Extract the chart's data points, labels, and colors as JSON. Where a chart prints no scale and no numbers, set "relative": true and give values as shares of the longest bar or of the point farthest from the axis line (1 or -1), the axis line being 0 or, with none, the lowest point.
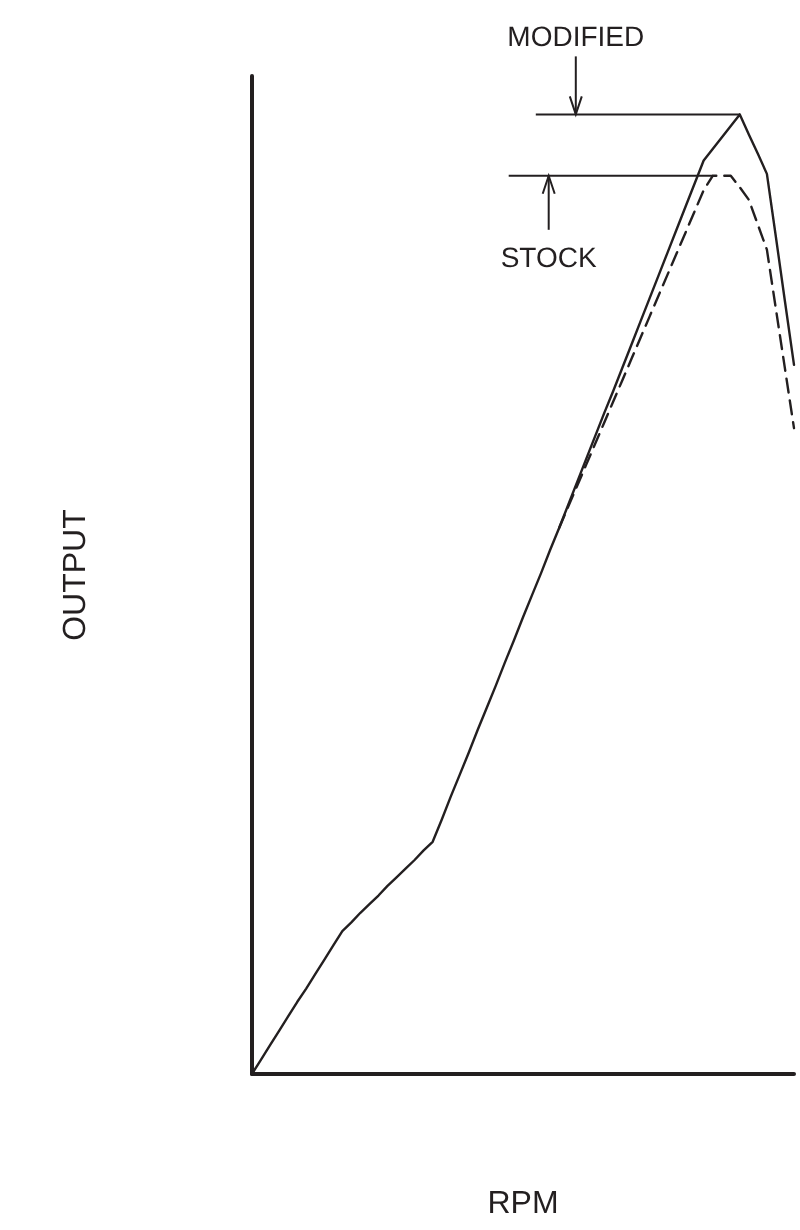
{
  "chart_data": {
    "type": "line",
    "relative": true,
    "xlabel": "RPM",
    "ylabel": "OUTPUT",
    "marker": "none",
    "grid": false,
    "categories": [
      null,
      null,
      null,
      null,
      null,
      null,
      null,
      null,
      null,
      null,
      null,
      null,
      null,
      null,
      null,
      null,
      null,
      null,
      null,
      null,
      null,
      null,
      null,
      null,
      null,
      null,
      null,
      null,
      null,
      null,
      null,
      null,
      null,
      null,
      null,
      null,
      null,
      null,
      null,
      null,
      null,
      null,
      null,
      null,
      null,
      null,
      null,
      null,
      null,
      null,
      null,
      null,
      null,
      null,
      null,
      null,
      null,
      null,
      null,
      null,
      null
    ],
    "series": [
      {
        "color": "#231f20",
        "line_style": "solid",
        "values": [
          0,
          0.015,
          0.03,
          0.045,
          0.06,
          0.075,
          0.089,
          0.104,
          0.119,
          0.134,
          0.149,
          0.158,
          0.168,
          0.177,
          0.186,
          0.196,
          0.205,
          0.214,
          0.223,
          0.233,
          0.242,
          0.265,
          0.289,
          0.312,
          0.335,
          0.359,
          0.382,
          0.405,
          0.429,
          0.452,
          0.476,
          0.499,
          0.522,
          0.546,
          0.569,
          0.593,
          0.617,
          0.641,
          0.665,
          0.689,
          0.712,
          0.736,
          0.76,
          0.784,
          0.808,
          0.832,
          0.856,
          0.88,
          0.904,
          0.928,
          0.952,
          0.964,
          0.976,
          0.988,
          1,
          0.979,
          0.959,
          0.938,
          0.872,
          0.805,
          0.739
        ]
      },
      {
        "color": "#231f20",
        "line_style": "dashed",
        "values": [
          null,
          null,
          null,
          null,
          null,
          null,
          null,
          null,
          null,
          null,
          null,
          null,
          null,
          null,
          null,
          null,
          null,
          null,
          null,
          null,
          null,
          null,
          null,
          null,
          null,
          null,
          null,
          null,
          null,
          null,
          null,
          null,
          null,
          null,
          0.569,
          0.591,
          0.613,
          0.635,
          0.657,
          0.679,
          0.701,
          0.723,
          0.745,
          0.767,
          0.789,
          0.811,
          0.833,
          0.855,
          0.877,
          0.899,
          0.921,
          0.936,
          0.936,
          0.936,
          0.924,
          0.911,
          0.885,
          0.859,
          0.797,
          0.735,
          0.673
        ]
      }
    ],
    "annotations": [
      "MODIFIED",
      "STOCK"
    ]
  }
}
